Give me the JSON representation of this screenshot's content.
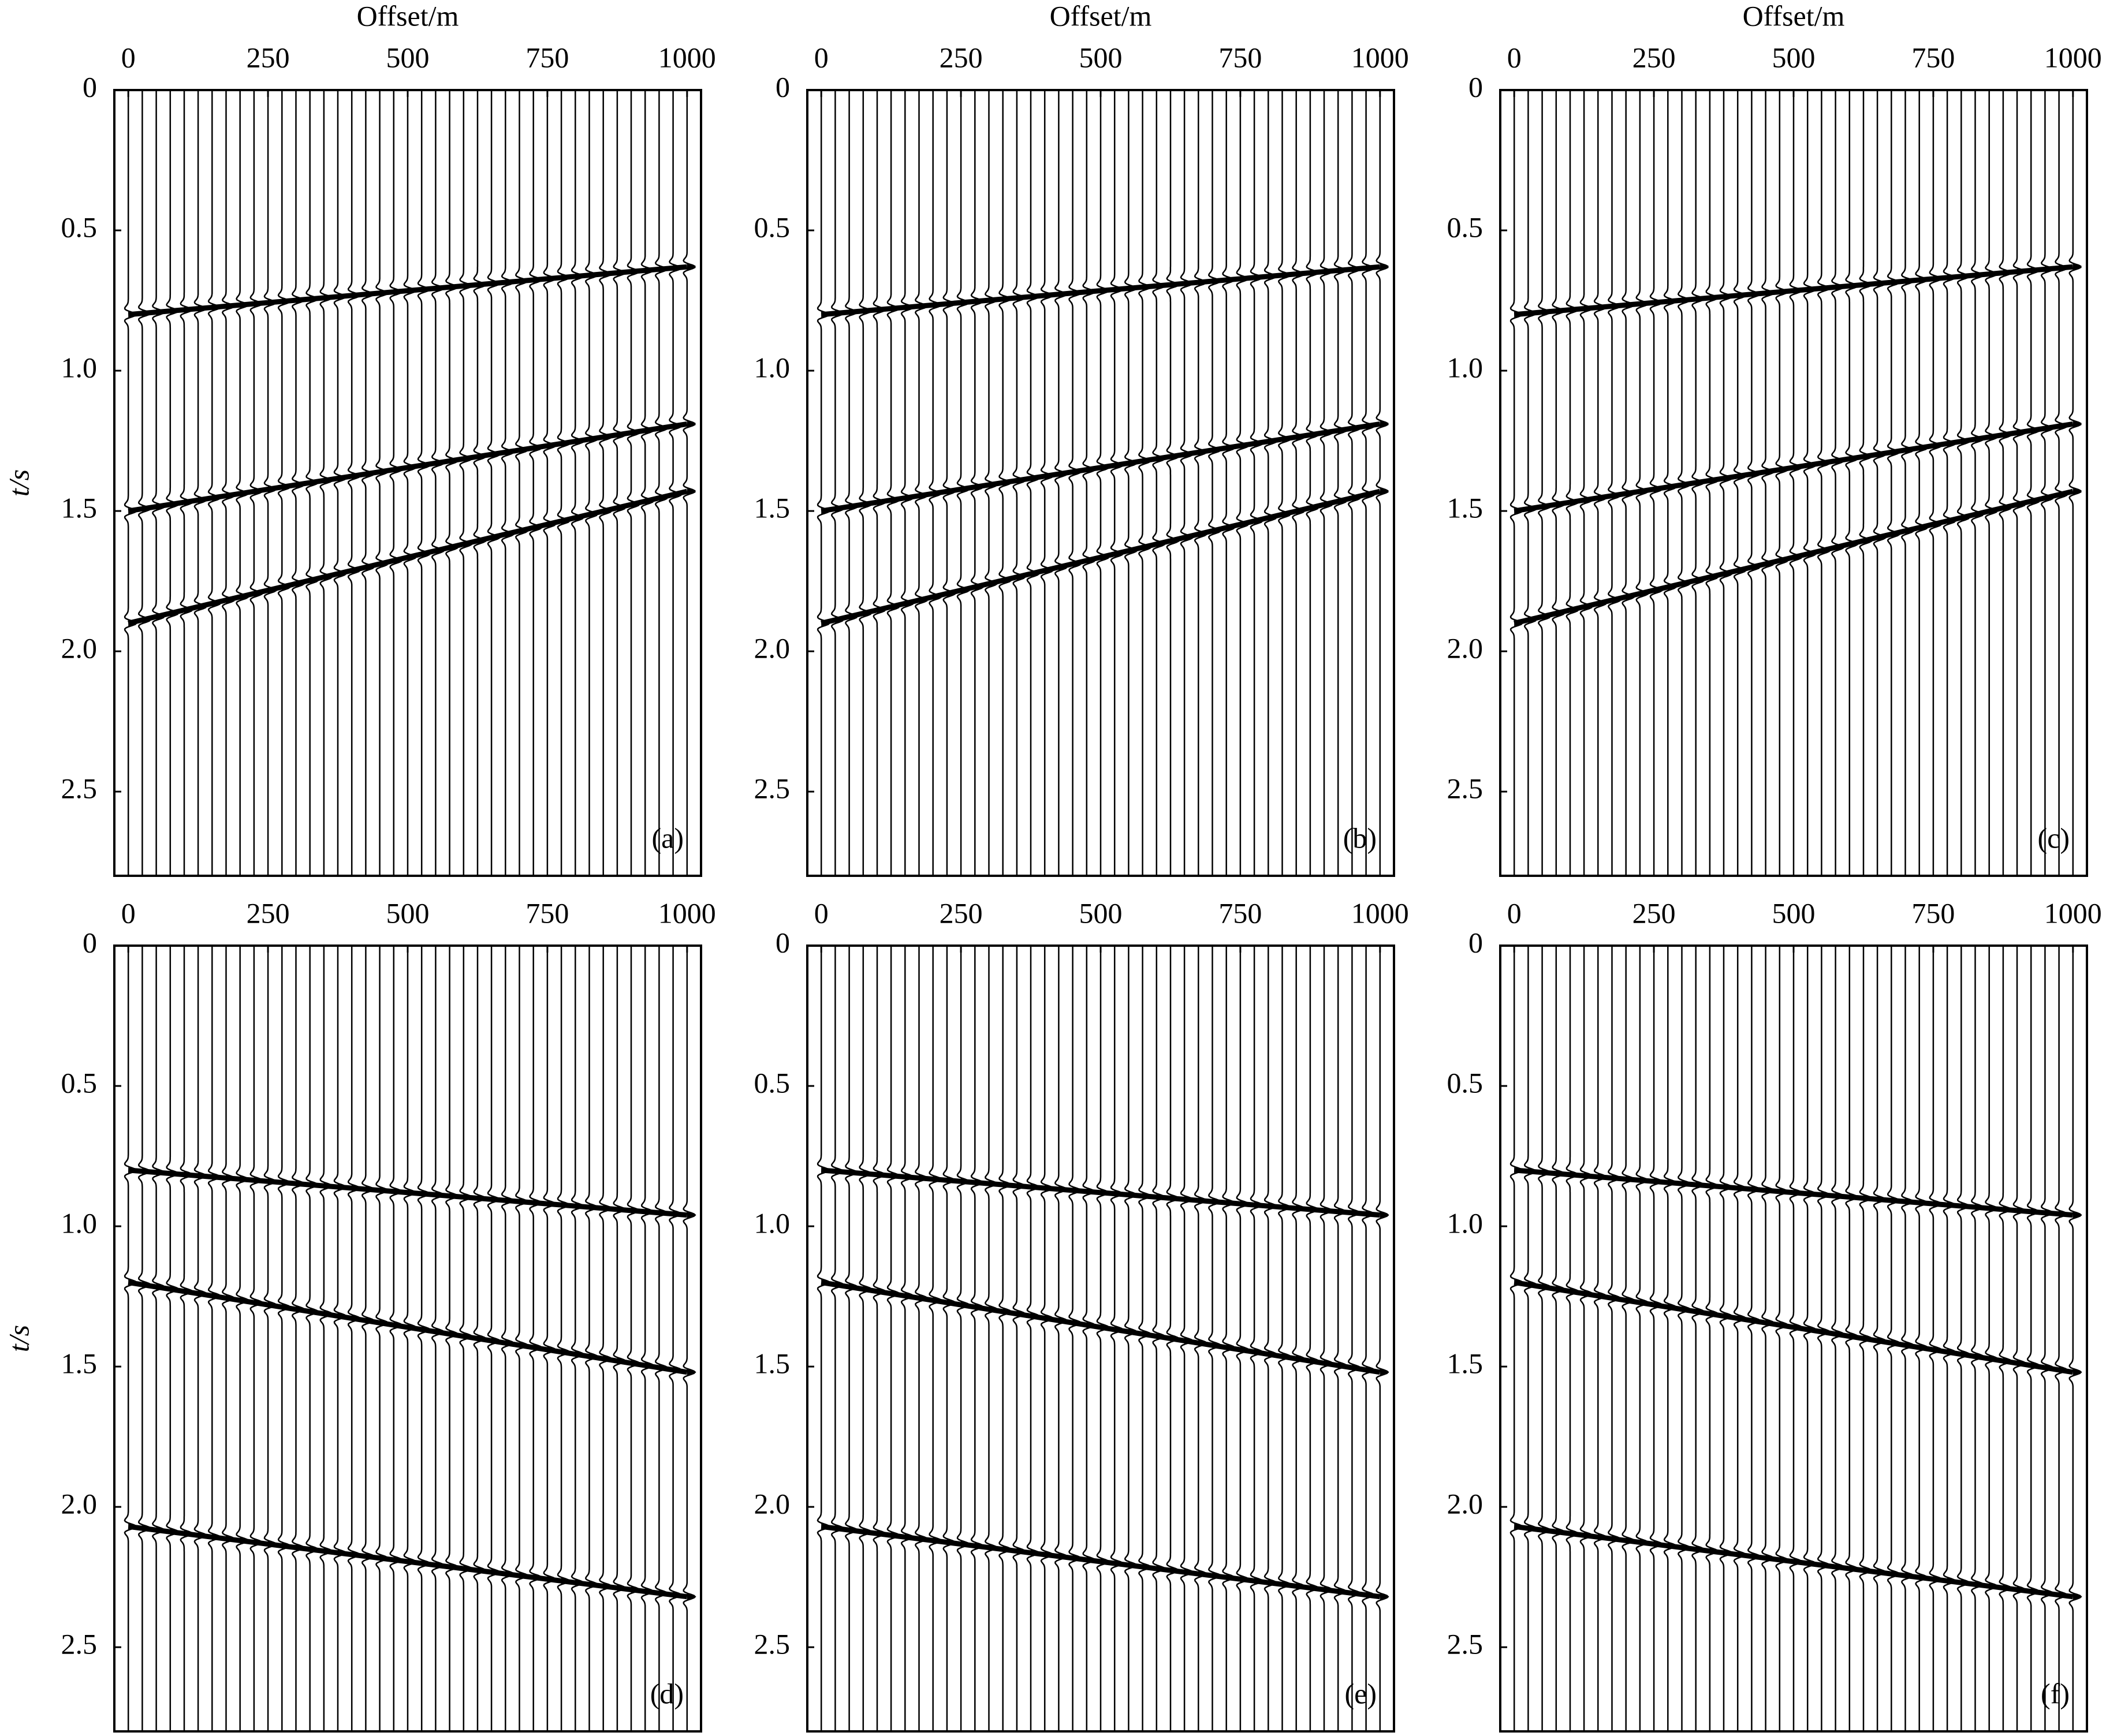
{
  "chart_data": [
    {
      "type": "line",
      "label": "(a)",
      "xlabel": "Offset/m",
      "ylabel": "t/s",
      "xlim": [
        -25,
        1025
      ],
      "ylim": [
        0,
        2.8
      ],
      "xticks": [
        0,
        250,
        500,
        750,
        1000
      ],
      "yticks": [
        0,
        0.5,
        {
          "value": 1,
          "label": "1.0"
        },
        1.5,
        {
          "value": 2,
          "label": "2.0"
        },
        2.5
      ],
      "series": [
        {
          "x": [
            0,
            1000
          ],
          "values": [
            0.8,
            0.63
          ]
        },
        {
          "x": [
            0,
            1000
          ],
          "values": [
            1.5,
            1.19
          ]
        },
        {
          "x": [
            0,
            1000
          ],
          "values": [
            1.9,
            1.43
          ]
        }
      ]
    },
    {
      "type": "line",
      "label": "(b)",
      "xlabel": "Offset/m",
      "xlim": [
        -25,
        1025
      ],
      "ylim": [
        0,
        2.8
      ],
      "xticks": [
        0,
        250,
        500,
        750,
        1000
      ],
      "yticks": [
        0,
        0.5,
        {
          "value": 1,
          "label": "1.0"
        },
        1.5,
        {
          "value": 2,
          "label": "2.0"
        },
        2.5
      ],
      "series": [
        {
          "x": [
            0,
            1000
          ],
          "values": [
            0.8,
            0.63
          ]
        },
        {
          "x": [
            0,
            1000
          ],
          "values": [
            1.5,
            1.19
          ]
        },
        {
          "x": [
            0,
            1000
          ],
          "values": [
            1.9,
            1.43
          ]
        }
      ]
    },
    {
      "type": "line",
      "label": "(c)",
      "xlabel": "Offset/m",
      "xlim": [
        -25,
        1025
      ],
      "ylim": [
        0,
        2.8
      ],
      "xticks": [
        0,
        250,
        500,
        750,
        1000
      ],
      "yticks": [
        0,
        0.5,
        {
          "value": 1,
          "label": "1.0"
        },
        1.5,
        {
          "value": 2,
          "label": "2.0"
        },
        2.5
      ],
      "series": [
        {
          "x": [
            0,
            1000
          ],
          "values": [
            0.8,
            0.63
          ]
        },
        {
          "x": [
            0,
            1000
          ],
          "values": [
            1.5,
            1.19
          ]
        },
        {
          "x": [
            0,
            1000
          ],
          "values": [
            1.9,
            1.43
          ]
        }
      ]
    },
    {
      "type": "line",
      "label": "(d)",
      "ylabel": "t/s",
      "xlim": [
        -25,
        1025
      ],
      "ylim": [
        0,
        2.8
      ],
      "xticks": [
        0,
        250,
        500,
        750,
        1000
      ],
      "yticks": [
        0,
        0.5,
        {
          "value": 1,
          "label": "1.0"
        },
        1.5,
        {
          "value": 2,
          "label": "2.0"
        },
        2.5
      ],
      "series": [
        {
          "x": [
            0,
            1000
          ],
          "values": [
            0.8,
            0.96
          ]
        },
        {
          "x": [
            0,
            1000
          ],
          "values": [
            1.2,
            1.52
          ]
        },
        {
          "x": [
            0,
            1000
          ],
          "values": [
            2.07,
            2.32
          ]
        }
      ]
    },
    {
      "type": "line",
      "label": "(e)",
      "xlim": [
        -25,
        1025
      ],
      "ylim": [
        0,
        2.8
      ],
      "xticks": [
        0,
        250,
        500,
        750,
        1000
      ],
      "yticks": [
        0,
        0.5,
        {
          "value": 1,
          "label": "1.0"
        },
        1.5,
        {
          "value": 2,
          "label": "2.0"
        },
        2.5
      ],
      "series": [
        {
          "x": [
            0,
            1000
          ],
          "values": [
            0.8,
            0.96
          ]
        },
        {
          "x": [
            0,
            1000
          ],
          "values": [
            1.2,
            1.52
          ]
        },
        {
          "x": [
            0,
            1000
          ],
          "values": [
            2.07,
            2.32
          ]
        }
      ]
    },
    {
      "type": "line",
      "label": "(f)",
      "xlim": [
        -25,
        1025
      ],
      "ylim": [
        0,
        2.8
      ],
      "xticks": [
        0,
        250,
        500,
        750,
        1000
      ],
      "yticks": [
        0,
        0.5,
        {
          "value": 1,
          "label": "1.0"
        },
        1.5,
        {
          "value": 2,
          "label": "2.0"
        },
        2.5
      ],
      "series": [
        {
          "x": [
            0,
            1000
          ],
          "values": [
            0.8,
            0.96
          ]
        },
        {
          "x": [
            0,
            1000
          ],
          "values": [
            1.2,
            1.52
          ]
        },
        {
          "x": [
            0,
            1000
          ],
          "values": [
            2.07,
            2.32
          ]
        }
      ]
    }
  ]
}
